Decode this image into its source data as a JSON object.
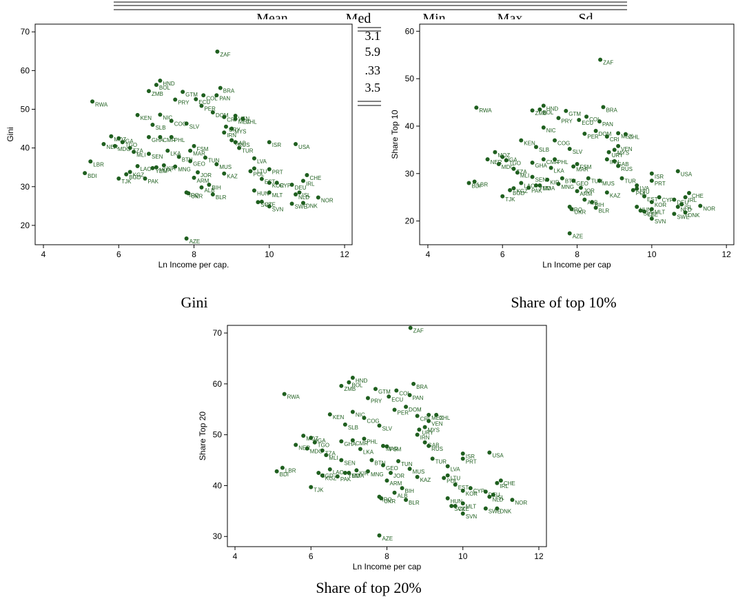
{
  "table_header": [
    "Mean",
    "Med",
    "Min",
    "Max",
    "Sd"
  ],
  "table_fragments": [
    "3.1",
    "5.9",
    ".33",
    "3.5"
  ],
  "chart_data": [
    {
      "type": "scatter",
      "caption": "Gini",
      "xlabel": "Ln Income per cap.",
      "ylabel": "Gini",
      "color": "#1f5f1f",
      "xlim": [
        3.78,
        12.2
      ],
      "ylim": [
        15,
        72
      ],
      "xticks": [
        4,
        6,
        8,
        10,
        12
      ],
      "yticks": [
        20,
        30,
        40,
        50,
        60,
        70
      ],
      "labels": [
        "ZAF",
        "HND",
        "BOL",
        "ZMB",
        "GTM",
        "BRA",
        "COL",
        "PAN",
        "ECU",
        "PRY",
        "RWA",
        "PER",
        "DOM",
        "KEN",
        "NIC",
        "VEN",
        "CRI",
        "MEX",
        "CHL",
        "COG",
        "SLV",
        "SLB",
        "URY",
        "MYS",
        "IRN",
        "GHA",
        "CMR",
        "PHL",
        "GAB",
        "RUS",
        "MOZ",
        "UGA",
        "TGO",
        "NER",
        "FSM",
        "ISR",
        "USA",
        "MDG",
        "TZA",
        "MLI",
        "SEN",
        "LKA",
        "MAR",
        "TUR",
        "LBR",
        "BTN",
        "GEO",
        "TUN",
        "KIR",
        "MNG",
        "LAO",
        "MDA",
        "YEM",
        "KGZ",
        "BGD",
        "PAK",
        "BDI",
        "TJK",
        "LVA",
        "MUS",
        "JOR",
        "KAZ",
        "LTU",
        "POL",
        "ARM",
        "PRT",
        "EST",
        "CHE",
        "IRL",
        "KOR",
        "CYP",
        "ALB",
        "BIH",
        "HUN",
        "MLT",
        "IRQ",
        "UKR",
        "BLR",
        "DEU",
        "NLD",
        "ISL",
        "NOR",
        "SWE",
        "DNK",
        "SVK",
        "CZE",
        "SVN",
        "AZE"
      ],
      "x": [
        8.62,
        7.1,
        7.0,
        6.8,
        7.7,
        8.7,
        8.25,
        8.6,
        8.05,
        7.5,
        5.3,
        8.2,
        8.5,
        6.5,
        7.1,
        9.1,
        8.8,
        9.1,
        9.3,
        7.4,
        7.8,
        6.9,
        8.85,
        9.0,
        8.8,
        6.8,
        7.1,
        7.4,
        9.0,
        9.1,
        5.8,
        6.0,
        6.1,
        5.6,
        8.0,
        10.0,
        10.7,
        5.9,
        6.3,
        6.4,
        6.8,
        7.3,
        7.9,
        9.2,
        5.25,
        7.6,
        7.9,
        8.3,
        7.2,
        7.5,
        6.5,
        7.0,
        6.9,
        6.3,
        6.2,
        6.7,
        5.1,
        6.0,
        9.6,
        8.6,
        8.1,
        8.8,
        9.6,
        9.5,
        8.0,
        10.0,
        9.8,
        11.0,
        10.9,
        10.0,
        10.2,
        8.2,
        8.4,
        9.6,
        10.0,
        7.8,
        7.85,
        8.5,
        10.6,
        10.7,
        10.8,
        11.3,
        10.6,
        10.9,
        9.7,
        9.8,
        10.0,
        7.8
      ],
      "y": [
        64.9,
        57.4,
        56.3,
        54.7,
        54.5,
        55.5,
        53.6,
        53.6,
        52.6,
        52.5,
        52.0,
        50.9,
        49.2,
        48.5,
        48.6,
        48.3,
        48.0,
        47.5,
        47.5,
        47.0,
        46.3,
        46.0,
        45.5,
        45.0,
        44.0,
        42.8,
        42.8,
        42.8,
        42.0,
        41.5,
        43.0,
        42.5,
        41.5,
        41.0,
        40.5,
        41.5,
        41.0,
        40.5,
        40.0,
        39.0,
        38.5,
        39.3,
        39.3,
        40.0,
        36.5,
        37.7,
        36.6,
        37.5,
        35.5,
        35.2,
        35.3,
        35.0,
        34.8,
        33.8,
        33.2,
        32.1,
        33.5,
        32.1,
        37.3,
        35.8,
        33.7,
        33.4,
        34.7,
        34.0,
        32.3,
        34.5,
        32.0,
        33.0,
        31.5,
        31.0,
        31.0,
        29.8,
        30.5,
        29.0,
        28.5,
        28.5,
        28.3,
        28.0,
        30.5,
        28.0,
        28.5,
        27.2,
        25.6,
        25.8,
        26.0,
        26.1,
        24.9,
        16.6
      ]
    },
    {
      "type": "scatter",
      "caption": "Share of top 10%",
      "xlabel": "Ln Income per cap",
      "ylabel": "Share Top 10",
      "color": "#1f5f1f",
      "xlim": [
        3.78,
        12.2
      ],
      "ylim": [
        15,
        61.5
      ],
      "xticks": [
        4,
        6,
        8,
        10,
        12
      ],
      "yticks": [
        20,
        30,
        40,
        50,
        60
      ],
      "labels": [
        "ZAF",
        "HND",
        "BOL",
        "ZMB",
        "GTM",
        "BRA",
        "COL",
        "PAN",
        "ECU",
        "PRY",
        "RWA",
        "PER",
        "DOM",
        "KEN",
        "NIC",
        "VEN",
        "CRI",
        "MEX",
        "CHL",
        "COG",
        "SLV",
        "SLB",
        "URY",
        "MYS",
        "IRN",
        "GHA",
        "CMR",
        "PHL",
        "GAB",
        "RUS",
        "MOZ",
        "UGA",
        "TGO",
        "NER",
        "FSM",
        "ISR",
        "USA",
        "MDG",
        "TZA",
        "MLI",
        "SEN",
        "LKA",
        "MAR",
        "TUR",
        "LBR",
        "BTN",
        "GEO",
        "TUN",
        "KIR",
        "MNG",
        "LAO",
        "MDA",
        "YEM",
        "KGZ",
        "BGD",
        "PAK",
        "BDI",
        "TJK",
        "LVA",
        "MUS",
        "JOR",
        "KAZ",
        "LTU",
        "POL",
        "ARM",
        "PRT",
        "EST",
        "CHE",
        "IRL",
        "KOR",
        "CYP",
        "ALB",
        "BIH",
        "HUN",
        "MLT",
        "IRQ",
        "UKR",
        "BLR",
        "DEU",
        "NLD",
        "ISL",
        "NOR",
        "SWE",
        "DNK",
        "SVK",
        "CZE",
        "SVN",
        "AZE"
      ],
      "x": [
        8.62,
        7.1,
        7.0,
        6.8,
        7.7,
        8.7,
        8.25,
        8.6,
        8.05,
        7.5,
        5.3,
        8.2,
        8.5,
        6.5,
        7.1,
        9.1,
        8.8,
        9.1,
        9.3,
        7.4,
        7.8,
        6.9,
        8.85,
        9.0,
        8.8,
        6.8,
        7.1,
        7.4,
        9.0,
        9.1,
        5.8,
        6.0,
        6.1,
        5.6,
        8.0,
        10.0,
        10.7,
        5.9,
        6.3,
        6.4,
        6.8,
        7.3,
        7.9,
        9.2,
        5.25,
        7.6,
        7.9,
        8.3,
        7.2,
        7.5,
        6.5,
        7.0,
        6.9,
        6.3,
        6.2,
        6.7,
        5.1,
        6.0,
        9.6,
        8.6,
        8.1,
        8.8,
        9.6,
        9.5,
        8.0,
        10.0,
        9.8,
        11.0,
        10.9,
        10.0,
        10.2,
        8.2,
        8.4,
        9.6,
        10.0,
        7.8,
        7.85,
        8.5,
        10.6,
        10.7,
        10.8,
        11.3,
        10.6,
        10.9,
        9.7,
        9.8,
        10.0,
        7.8
      ],
      "y": [
        54.0,
        44.3,
        43.5,
        43.3,
        43.2,
        44.0,
        42.0,
        41.0,
        41.3,
        41.7,
        43.9,
        38.4,
        39.0,
        37.0,
        39.7,
        35.8,
        37.8,
        38.5,
        38.3,
        37.0,
        35.2,
        35.6,
        34.5,
        35.0,
        33.0,
        32.3,
        33.0,
        33.0,
        32.6,
        31.6,
        34.5,
        33.5,
        32.8,
        33.0,
        32.0,
        30.0,
        30.5,
        32.0,
        31.0,
        30.2,
        29.3,
        31.2,
        31.5,
        29.0,
        28.3,
        29.0,
        28.5,
        29.0,
        28.7,
        27.8,
        28.0,
        27.5,
        27.5,
        26.9,
        26.5,
        27.0,
        28.0,
        25.2,
        27.5,
        28.5,
        27.0,
        26.0,
        26.8,
        26.5,
        26.3,
        28.5,
        25.2,
        25.9,
        25.0,
        24.0,
        25.0,
        24.5,
        24.0,
        23.0,
        22.5,
        23.0,
        22.5,
        22.8,
        24.5,
        23.0,
        23.5,
        23.2,
        21.5,
        21.8,
        22.2,
        22.0,
        20.5,
        17.4
      ]
    },
    {
      "type": "scatter",
      "caption": "Share of top 20%",
      "xlabel": "Ln Income per cap",
      "ylabel": "Share Top 20",
      "color": "#1f5f1f",
      "xlim": [
        3.8,
        12.2
      ],
      "ylim": [
        28,
        71.5
      ],
      "xticks": [
        4,
        6,
        8,
        10,
        12
      ],
      "yticks": [
        30,
        40,
        50,
        60,
        70
      ],
      "labels": [
        "ZAF",
        "HND",
        "BOL",
        "ZMB",
        "GTM",
        "BRA",
        "COL",
        "PAN",
        "ECU",
        "PRY",
        "RWA",
        "PER",
        "DOM",
        "KEN",
        "NIC",
        "VEN",
        "CRI",
        "MEX",
        "CHL",
        "COG",
        "SLV",
        "SLB",
        "URY",
        "MYS",
        "IRN",
        "GHA",
        "CMR",
        "PHL",
        "GAB",
        "RUS",
        "MOZ",
        "UGA",
        "TGO",
        "NER",
        "FSM",
        "ISR",
        "USA",
        "MDG",
        "TZA",
        "MLI",
        "SEN",
        "LKA",
        "MAR",
        "TUR",
        "LBR",
        "BTN",
        "GEO",
        "TUN",
        "KIR",
        "MNG",
        "LAO",
        "MDA",
        "YEM",
        "KGZ",
        "BGD",
        "PAK",
        "BDI",
        "TJK",
        "LVA",
        "MUS",
        "JOR",
        "KAZ",
        "LTU",
        "POL",
        "ARM",
        "PRT",
        "EST",
        "CHE",
        "IRL",
        "KOR",
        "CYP",
        "ALB",
        "BIH",
        "HUN",
        "MLT",
        "IRQ",
        "UKR",
        "BLR",
        "DEU",
        "NLD",
        "ISL",
        "NOR",
        "SWE",
        "DNK",
        "SVK",
        "CZE",
        "SVN",
        "AZE"
      ],
      "x": [
        8.62,
        7.1,
        7.0,
        6.8,
        7.7,
        8.7,
        8.25,
        8.6,
        8.05,
        7.5,
        5.3,
        8.2,
        8.5,
        6.5,
        7.1,
        9.1,
        8.8,
        9.1,
        9.3,
        7.4,
        7.8,
        6.9,
        8.85,
        9.0,
        8.8,
        6.8,
        7.1,
        7.4,
        9.0,
        9.1,
        5.8,
        6.0,
        6.1,
        5.6,
        8.0,
        10.0,
        10.7,
        5.9,
        6.3,
        6.4,
        6.8,
        7.3,
        7.9,
        9.2,
        5.25,
        7.6,
        7.9,
        8.3,
        7.2,
        7.5,
        6.5,
        7.0,
        6.9,
        6.3,
        6.2,
        6.7,
        5.1,
        6.0,
        9.6,
        8.6,
        8.1,
        8.8,
        9.6,
        9.5,
        8.0,
        10.0,
        9.8,
        11.0,
        10.9,
        10.0,
        10.2,
        8.2,
        8.4,
        9.6,
        10.0,
        7.8,
        7.85,
        8.5,
        10.6,
        10.7,
        10.8,
        11.3,
        10.6,
        10.9,
        9.7,
        9.8,
        10.0,
        7.8
      ],
      "y": [
        71.0,
        61.2,
        60.3,
        59.6,
        59.0,
        60.0,
        58.7,
        57.8,
        57.5,
        57.2,
        58.0,
        54.9,
        55.5,
        54.0,
        54.5,
        52.7,
        53.7,
        53.9,
        53.9,
        53.3,
        51.8,
        52.0,
        51.0,
        51.5,
        50.0,
        48.7,
        48.9,
        49.2,
        48.5,
        47.8,
        49.8,
        49.4,
        48.5,
        48.0,
        47.7,
        46.3,
        46.5,
        47.3,
        46.9,
        46.0,
        45.0,
        47.2,
        47.8,
        45.3,
        43.5,
        45.0,
        44.0,
        44.8,
        43.0,
        42.8,
        43.2,
        42.5,
        42.5,
        42.0,
        42.5,
        41.8,
        42.8,
        39.7,
        43.8,
        43.3,
        42.5,
        41.7,
        42.0,
        41.5,
        41.0,
        45.3,
        40.2,
        41.0,
        40.5,
        39.0,
        39.5,
        38.6,
        39.5,
        37.5,
        36.5,
        37.8,
        37.5,
        37.2,
        38.8,
        37.8,
        38.2,
        37.2,
        35.5,
        35.5,
        36.0,
        36.0,
        34.5,
        30.2
      ]
    }
  ]
}
